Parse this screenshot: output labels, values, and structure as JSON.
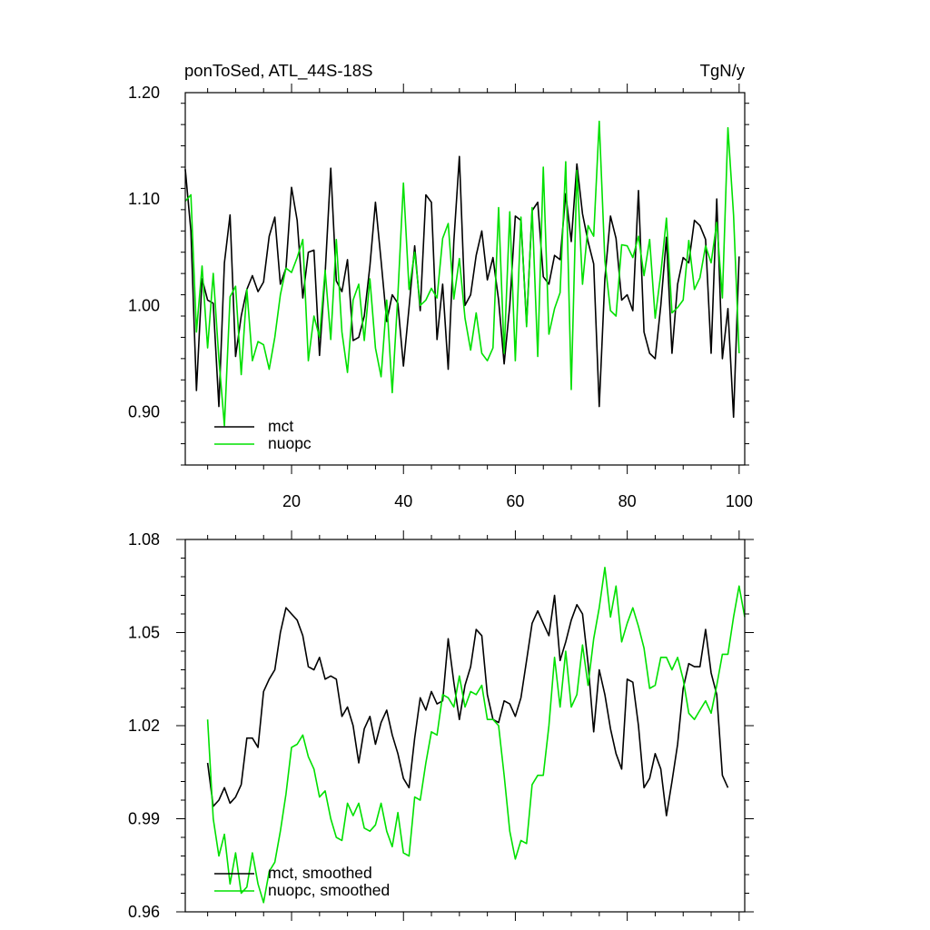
{
  "colors": {
    "mct": "#000000",
    "nuopc": "#00e000"
  },
  "header": {
    "title": "ponToSed, ATL_44S-18S",
    "units": "TgN/y"
  },
  "chart_data": [
    {
      "type": "line",
      "xlim": [
        1,
        101
      ],
      "ylim": [
        0.85,
        1.2
      ],
      "x_ticks": [
        20,
        40,
        60,
        80,
        100
      ],
      "y_ticks": [
        0.9,
        1.0,
        1.1,
        1.2
      ],
      "y_tick_labels": [
        "0.90",
        "1.00",
        "1.10",
        "1.20"
      ],
      "x_tick_labels": [
        "20",
        "40",
        "60",
        "80",
        "100"
      ],
      "legend": [
        "mct",
        "nuopc"
      ],
      "legend_position": "bottom-left",
      "series": [
        {
          "name": "mct",
          "color": "#000000",
          "x_start": 1,
          "values": [
            1.128,
            1.07,
            0.92,
            1.025,
            1.005,
            1.002,
            0.905,
            1.04,
            1.085,
            0.952,
            0.99,
            1.015,
            1.028,
            1.013,
            1.022,
            1.065,
            1.083,
            1.02,
            1.035,
            1.111,
            1.08,
            1.007,
            1.05,
            1.052,
            0.953,
            1.03,
            1.129,
            1.023,
            1.013,
            1.043,
            0.967,
            0.97,
            0.99,
            1.037,
            1.097,
            1.042,
            0.985,
            1.01,
            1.002,
            0.943,
            0.998,
            1.056,
            0.995,
            1.104,
            1.097,
            0.968,
            1.02,
            0.94,
            1.06,
            1.14,
            1.0,
            1.01,
            1.047,
            1.07,
            1.024,
            1.045,
            1.005,
            0.945,
            1.0,
            1.084,
            1.08,
            0.983,
            1.089,
            1.097,
            1.027,
            1.02,
            1.047,
            1.043,
            1.105,
            1.06,
            1.133,
            1.086,
            1.06,
            1.039,
            0.905,
            1.025,
            1.084,
            1.063,
            1.005,
            1.01,
            0.995,
            1.108,
            0.975,
            0.955,
            0.95,
            1.0,
            1.064,
            0.955,
            1.02,
            1.045,
            1.04,
            1.08,
            1.075,
            1.062,
            0.955,
            1.1,
            0.95,
            0.997,
            0.895,
            1.046
          ]
        },
        {
          "name": "nuopc",
          "color": "#00e000",
          "x_start": 1,
          "values": [
            1.098,
            1.104,
            0.975,
            1.037,
            0.96,
            1.03,
            0.95,
            0.887,
            1.008,
            1.018,
            0.935,
            1.015,
            0.948,
            0.966,
            0.963,
            0.94,
            0.97,
            1.01,
            1.035,
            1.031,
            1.045,
            1.062,
            0.948,
            0.99,
            0.97,
            1.033,
            0.968,
            1.062,
            0.975,
            0.937,
            1.005,
            1.02,
            0.967,
            1.025,
            0.96,
            0.933,
            1.005,
            0.918,
            1.01,
            1.115,
            1.015,
            1.05,
            1.0,
            1.005,
            1.016,
            1.007,
            1.063,
            1.077,
            1.006,
            1.044,
            0.988,
            0.958,
            0.993,
            0.955,
            0.948,
            0.96,
            1.092,
            0.955,
            1.088,
            0.948,
            1.083,
            0.98,
            1.092,
            0.952,
            1.13,
            0.973,
            0.997,
            1.012,
            1.135,
            0.921,
            1.127,
            1.02,
            1.075,
            1.065,
            1.173,
            1.042,
            0.995,
            0.99,
            1.057,
            1.056,
            1.045,
            1.065,
            1.028,
            1.062,
            0.988,
            1.03,
            1.082,
            0.993,
            0.998,
            1.005,
            1.061,
            1.015,
            1.026,
            1.056,
            1.04,
            1.078,
            1.007,
            1.167,
            1.085,
            0.955
          ]
        }
      ]
    },
    {
      "type": "line",
      "xlim": [
        1,
        101
      ],
      "ylim": [
        0.96,
        1.08
      ],
      "x_ticks": [
        20,
        40,
        60,
        80,
        100
      ],
      "y_ticks": [
        0.96,
        0.99,
        1.02,
        1.05,
        1.08
      ],
      "y_tick_labels": [
        "0.96",
        "0.99",
        "1.02",
        "1.05",
        "1.08"
      ],
      "legend": [
        "mct, smoothed",
        "nuopc, smoothed"
      ],
      "legend_position": "bottom-left",
      "series": [
        {
          "name": "mct, smoothed",
          "color": "#000000",
          "x_start": 5,
          "values": [
            1.008,
            0.994,
            0.996,
            1.0,
            0.995,
            0.997,
            1.001,
            1.016,
            1.016,
            1.013,
            1.031,
            1.035,
            1.038,
            1.05,
            1.058,
            1.056,
            1.054,
            1.049,
            1.039,
            1.038,
            1.042,
            1.035,
            1.036,
            1.035,
            1.023,
            1.026,
            1.02,
            1.008,
            1.019,
            1.023,
            1.014,
            1.021,
            1.025,
            1.017,
            1.011,
            1.003,
            1.0,
            1.016,
            1.029,
            1.025,
            1.031,
            1.027,
            1.028,
            1.048,
            1.034,
            1.022,
            1.033,
            1.039,
            1.051,
            1.049,
            1.03,
            1.022,
            1.021,
            1.028,
            1.027,
            1.023,
            1.029,
            1.041,
            1.053,
            1.057,
            1.053,
            1.049,
            1.062,
            1.041,
            1.047,
            1.054,
            1.059,
            1.056,
            1.04,
            1.018,
            1.038,
            1.03,
            1.019,
            1.011,
            1.006,
            1.035,
            1.034,
            1.02,
            1.0,
            1.003,
            1.011,
            1.006,
            0.991,
            1.002,
            1.014,
            1.032,
            1.04,
            1.039,
            1.039,
            1.051,
            1.037,
            1.03,
            1.004,
            1.0
          ]
        },
        {
          "name": "nuopc, smoothed",
          "color": "#00e000",
          "x_start": 5,
          "values": [
            1.022,
            0.99,
            0.978,
            0.985,
            0.969,
            0.979,
            0.966,
            0.968,
            0.979,
            0.969,
            0.963,
            0.973,
            0.976,
            0.986,
            0.998,
            1.013,
            1.014,
            1.017,
            1.01,
            1.006,
            0.997,
            0.999,
            0.99,
            0.984,
            0.983,
            0.995,
            0.991,
            0.995,
            0.987,
            0.986,
            0.988,
            0.995,
            0.986,
            0.981,
            0.992,
            0.979,
            0.978,
            0.997,
            0.996,
            1.008,
            1.018,
            1.017,
            1.03,
            1.029,
            1.026,
            1.036,
            1.026,
            1.031,
            1.03,
            1.033,
            1.022,
            1.022,
            1.02,
            1.004,
            0.986,
            0.977,
            0.983,
            0.982,
            1.001,
            1.004,
            1.004,
            1.02,
            1.042,
            1.026,
            1.044,
            1.026,
            1.03,
            1.046,
            1.033,
            1.048,
            1.058,
            1.071,
            1.055,
            1.065,
            1.047,
            1.053,
            1.058,
            1.052,
            1.045,
            1.032,
            1.033,
            1.042,
            1.042,
            1.038,
            1.042,
            1.035,
            1.024,
            1.022,
            1.025,
            1.028,
            1.024,
            1.033,
            1.043,
            1.043,
            1.055,
            1.065,
            1.055
          ]
        }
      ]
    }
  ]
}
